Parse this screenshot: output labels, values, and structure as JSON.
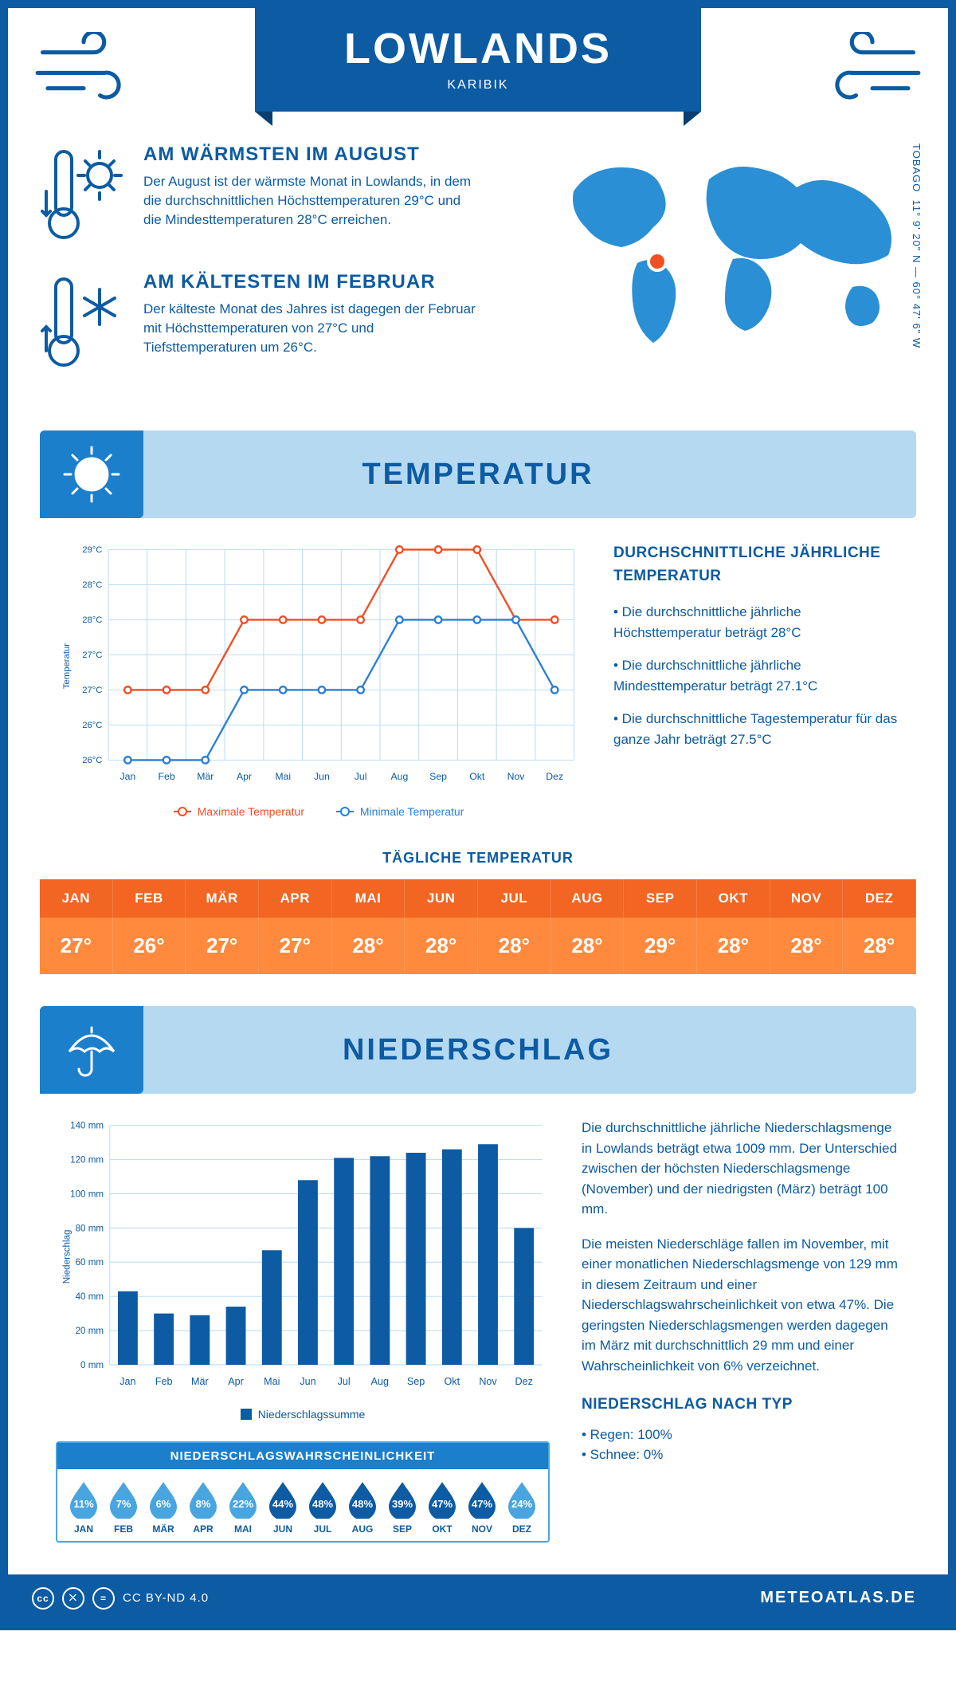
{
  "header": {
    "title": "LOWLANDS",
    "subtitle": "KARIBIK",
    "coords": "11° 9' 20\" N — 60° 47' 6\" W",
    "region": "TOBAGO"
  },
  "colors": {
    "primary": "#0c5ba3",
    "lightblue": "#b6d9f2",
    "midblue": "#1c7fcc",
    "accentblue": "#49a5e0",
    "orange_head": "#f26522",
    "orange_body": "#ff8a3d",
    "line_max": "#f04e23",
    "line_min": "#2a7fd4",
    "drop_dark": "#0c5ba3",
    "drop_light": "#49a5e0"
  },
  "warm": {
    "title": "AM WÄRMSTEN IM AUGUST",
    "text": "Der August ist der wärmste Monat in Lowlands, in dem die durchschnittlichen Höchsttemperaturen 29°C und die Mindesttemperaturen 28°C erreichen."
  },
  "cold": {
    "title": "AM KÄLTESTEN IM FEBRUAR",
    "text": "Der kälteste Monat des Jahres ist dagegen der Februar mit Höchsttemperaturen von 27°C und Tiefsttemperaturen um 26°C."
  },
  "section_temp": "TEMPERATUR",
  "section_precip": "NIEDERSCHLAG",
  "months": [
    "Jan",
    "Feb",
    "Mär",
    "Apr",
    "Mai",
    "Jun",
    "Jul",
    "Aug",
    "Sep",
    "Okt",
    "Nov",
    "Dez"
  ],
  "months_upper": [
    "JAN",
    "FEB",
    "MÄR",
    "APR",
    "MAI",
    "JUN",
    "JUL",
    "AUG",
    "SEP",
    "OKT",
    "NOV",
    "DEZ"
  ],
  "temp_chart": {
    "type": "line",
    "y_axis_label": "Temperatur",
    "y_min": 26,
    "y_max": 29,
    "y_step": 0.5,
    "y_ticks": [
      "26°C",
      "26°C",
      "27°C",
      "27°C",
      "28°C",
      "28°C",
      "29°C"
    ],
    "max_series": [
      27,
      27,
      27,
      28,
      28,
      28,
      28,
      29,
      29,
      29,
      28,
      28
    ],
    "min_series": [
      26,
      26,
      26,
      27,
      27,
      27,
      27,
      28,
      28,
      28,
      28,
      27
    ],
    "legend_max": "Maximale Temperatur",
    "legend_min": "Minimale Temperatur",
    "grid_color": "#b6d9f2",
    "background": "#ffffff"
  },
  "temp_side": {
    "title": "DURCHSCHNITTLICHE JÄHRLICHE TEMPERATUR",
    "p1": "• Die durchschnittliche jährliche Höchsttemperatur beträgt 28°C",
    "p2": "• Die durchschnittliche jährliche Mindesttemperatur beträgt 27.1°C",
    "p3": "• Die durchschnittliche Tagestemperatur für das ganze Jahr beträgt 27.5°C"
  },
  "daily": {
    "title": "TÄGLICHE TEMPERATUR",
    "values": [
      "27°",
      "26°",
      "27°",
      "27°",
      "28°",
      "28°",
      "28°",
      "28°",
      "29°",
      "28°",
      "28°",
      "28°"
    ]
  },
  "precip_chart": {
    "type": "bar",
    "y_axis_label": "Niederschlag",
    "y_min": 0,
    "y_max": 140,
    "y_step": 20,
    "y_ticks": [
      "0 mm",
      "20 mm",
      "40 mm",
      "60 mm",
      "80 mm",
      "100 mm",
      "120 mm",
      "140 mm"
    ],
    "values": [
      43,
      30,
      29,
      34,
      67,
      108,
      121,
      122,
      124,
      126,
      129,
      80
    ],
    "bar_color": "#0c5ba3",
    "legend": "Niederschlagssumme",
    "grid_color": "#b6d9f2"
  },
  "precip_side": {
    "p1": "Die durchschnittliche jährliche Niederschlagsmenge in Lowlands beträgt etwa 1009 mm. Der Unterschied zwischen der höchsten Niederschlagsmenge (November) und der niedrigsten (März) beträgt 100 mm.",
    "p2": "Die meisten Niederschläge fallen im November, mit einer monatlichen Niederschlagsmenge von 129 mm in diesem Zeitraum und einer Niederschlagswahrscheinlichkeit von etwa 47%. Die geringsten Niederschlagsmengen werden dagegen im März mit durchschnittlich 29 mm und einer Wahrscheinlichkeit von 6% verzeichnet.",
    "type_title": "NIEDERSCHLAG NACH TYP",
    "type1": "• Regen: 100%",
    "type2": "• Schnee: 0%"
  },
  "prob": {
    "title": "NIEDERSCHLAGSWAHRSCHEINLICHKEIT",
    "values": [
      11,
      7,
      6,
      8,
      22,
      44,
      48,
      48,
      39,
      47,
      47,
      24
    ]
  },
  "footer": {
    "license": "CC BY-ND 4.0",
    "brand": "METEOATLAS.DE"
  }
}
